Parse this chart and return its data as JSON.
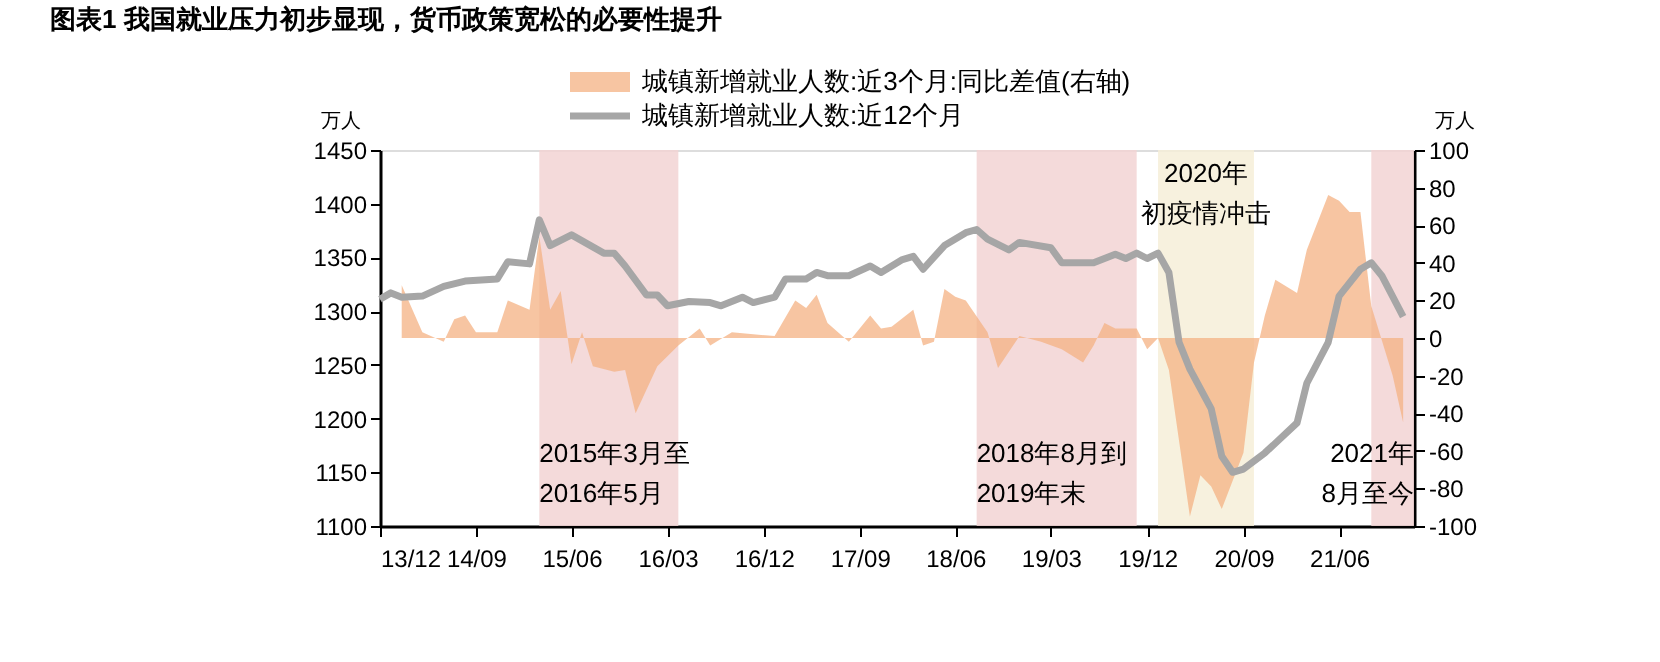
{
  "chart_data": {
    "type": "line",
    "title": "图表1    我国就业压力初步显现，货币政策宽松的必要性提升",
    "ylabel": "万人",
    "y2label": "万人",
    "xlim": [
      "2013-12",
      "2022-01"
    ],
    "xticks": [
      {
        "value": "2013-12",
        "label": "13/12"
      },
      {
        "value": "2014-09",
        "label": "14/09"
      },
      {
        "value": "2015-06",
        "label": "15/06"
      },
      {
        "value": "2016-03",
        "label": "16/03"
      },
      {
        "value": "2016-12",
        "label": "16/12"
      },
      {
        "value": "2017-09",
        "label": "17/09"
      },
      {
        "value": "2018-06",
        "label": "18/06"
      },
      {
        "value": "2019-03",
        "label": "19/03"
      },
      {
        "value": "2019-12",
        "label": "19/12"
      },
      {
        "value": "2020-09",
        "label": "20/09"
      },
      {
        "value": "2021-06",
        "label": "21/06"
      }
    ],
    "ylim": [
      1100,
      1450
    ],
    "yticks": [
      1100,
      1150,
      1200,
      1250,
      1300,
      1350,
      1400,
      1450
    ],
    "y2lim": [
      -100,
      100
    ],
    "y2ticks": [
      -100,
      -80,
      -60,
      -40,
      -20,
      0,
      20,
      40,
      60,
      80,
      100
    ],
    "grid": false,
    "legend": "top",
    "marker": "none",
    "line_style": "solid",
    "series": [
      {
        "name": "城镇新增就业人数:近3个月:同比差值(右轴)",
        "type": "area",
        "axis": "y2",
        "color": "#f4b183",
        "x": [
          "2014-02",
          "2014-04",
          "2014-06",
          "2014-07",
          "2014-08",
          "2014-09",
          "2014-11",
          "2014-12",
          "2015-02",
          "2015-03",
          "2015-04",
          "2015-05",
          "2015-06",
          "2015-07",
          "2015-08",
          "2015-10",
          "2015-11",
          "2015-12",
          "2016-02",
          "2016-04",
          "2016-06",
          "2016-07",
          "2016-09",
          "2017-01",
          "2017-03",
          "2017-04",
          "2017-05",
          "2017-06",
          "2017-08",
          "2017-10",
          "2017-11",
          "2017-12",
          "2018-02",
          "2018-03",
          "2018-04",
          "2018-05",
          "2018-06",
          "2018-07",
          "2018-09",
          "2018-10",
          "2018-12",
          "2019-02",
          "2019-04",
          "2019-06",
          "2019-07",
          "2019-08",
          "2019-09",
          "2019-11",
          "2019-12",
          "2020-01",
          "2020-02",
          "2020-04",
          "2020-05",
          "2020-06",
          "2020-07",
          "2020-09",
          "2020-10",
          "2020-11",
          "2020-12",
          "2021-02",
          "2021-03",
          "2021-05",
          "2021-06",
          "2021-07",
          "2021-08",
          "2021-09",
          "2021-11",
          "2021-12"
        ],
        "values": [
          28,
          3,
          -2,
          10,
          12,
          3,
          3,
          20,
          15,
          54,
          15,
          25,
          -14,
          3,
          -15,
          -18,
          -17,
          -40,
          -15,
          -4,
          5,
          -4,
          3,
          1,
          20,
          16,
          23,
          8,
          -2,
          12,
          5,
          6,
          15,
          -4,
          -2,
          26,
          22,
          20,
          3,
          -16,
          1,
          -2,
          -6,
          -13,
          -4,
          8,
          5,
          5,
          -6,
          0,
          -17,
          -95,
          -73,
          -79,
          -91,
          -61,
          -13,
          12,
          31,
          24,
          47,
          76,
          73,
          67,
          67,
          17,
          -20,
          -45
        ]
      },
      {
        "name": "城镇新增就业人数:近12个月",
        "color": "#a6a6a6",
        "x": [
          "2013-12",
          "2014-01",
          "2014-02",
          "2014-04",
          "2014-06",
          "2014-08",
          "2014-11",
          "2014-12",
          "2015-02",
          "2015-03",
          "2015-04",
          "2015-06",
          "2015-09",
          "2015-10",
          "2015-11",
          "2016-01",
          "2016-02",
          "2016-03",
          "2016-05",
          "2016-07",
          "2016-08",
          "2016-10",
          "2016-11",
          "2017-01",
          "2017-02",
          "2017-04",
          "2017-05",
          "2017-06",
          "2017-08",
          "2017-10",
          "2017-11",
          "2018-01",
          "2018-02",
          "2018-03",
          "2018-05",
          "2018-07",
          "2018-08",
          "2018-09",
          "2018-11",
          "2018-12",
          "2019-03",
          "2019-04",
          "2019-07",
          "2019-09",
          "2019-10",
          "2019-11",
          "2019-12",
          "2020-01",
          "2020-02",
          "2020-03",
          "2020-04",
          "2020-06",
          "2020-07",
          "2020-08",
          "2020-09",
          "2020-11",
          "2020-12",
          "2021-02",
          "2021-03",
          "2021-05",
          "2021-06",
          "2021-08",
          "2021-09",
          "2021-10",
          "2021-12"
        ],
        "values": [
          1311,
          1317,
          1313,
          1314,
          1323,
          1328,
          1330,
          1346,
          1344,
          1385,
          1361,
          1371,
          1354,
          1354,
          1342,
          1315,
          1315,
          1305,
          1309,
          1308,
          1305,
          1313,
          1308,
          1313,
          1330,
          1330,
          1336,
          1333,
          1333,
          1342,
          1336,
          1348,
          1351,
          1339,
          1361,
          1373,
          1376,
          1367,
          1357,
          1364,
          1359,
          1345,
          1345,
          1353,
          1349,
          1354,
          1349,
          1354,
          1336,
          1271,
          1246,
          1209,
          1165,
          1150,
          1153,
          1168,
          1177,
          1196,
          1233,
          1271,
          1314,
          1339,
          1345,
          1333,
          1295
        ]
      }
    ],
    "bands": [
      {
        "axis": "x",
        "from": "2015-03",
        "to": "2016-04",
        "label": "2015年3月至\n2016年5月",
        "color": "#f2d4d4"
      },
      {
        "axis": "x",
        "from": "2018-08",
        "to": "2019-11",
        "label": "2018年8月到\n2019年末",
        "color": "#f2d4d4"
      },
      {
        "axis": "x",
        "from": "2020-01",
        "to": "2020-10",
        "label": "2020年初疫情冲击",
        "color": "#f6eed8"
      },
      {
        "axis": "x",
        "from": "2021-09",
        "to": "2022-01",
        "label": "2021年\n8月至今",
        "color": "#f2d4d4"
      }
    ]
  }
}
